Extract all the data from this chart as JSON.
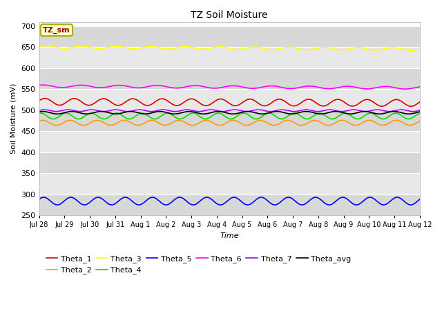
{
  "title": "TZ Soil Moisture",
  "xlabel": "Time",
  "ylabel": "Soil Moisture (mV)",
  "ylim": [
    250,
    710
  ],
  "yticks": [
    250,
    300,
    350,
    400,
    450,
    500,
    550,
    600,
    650,
    700
  ],
  "bg_color": "#e0e0e0",
  "label_box_text": "TZ_sm",
  "label_box_facecolor": "#ffffcc",
  "label_box_edgecolor": "#aaaa00",
  "label_box_textcolor": "#990000",
  "series_order": [
    "Theta_1",
    "Theta_2",
    "Theta_3",
    "Theta_4",
    "Theta_5",
    "Theta_6",
    "Theta_7",
    "Theta_avg"
  ],
  "series": {
    "Theta_1": {
      "color": "#dd0000",
      "base": 520,
      "amp": 8,
      "freq": 13
    },
    "Theta_2": {
      "color": "#ff9900",
      "base": 470,
      "amp": 6,
      "freq": 14
    },
    "Theta_3": {
      "color": "#ffff00",
      "base": 650,
      "amp": 3,
      "freq": 11
    },
    "Theta_4": {
      "color": "#00dd00",
      "base": 486,
      "amp": 7,
      "freq": 15
    },
    "Theta_5": {
      "color": "#0000ff",
      "base": 284,
      "amp": 9,
      "freq": 14
    },
    "Theta_6": {
      "color": "#ff00ff",
      "base": 557,
      "amp": 3,
      "freq": 10
    },
    "Theta_7": {
      "color": "#aa00ff",
      "base": 499,
      "amp": 2,
      "freq": 16
    },
    "Theta_avg": {
      "color": "#000000",
      "base": 494,
      "amp": 3,
      "freq": 13
    }
  },
  "legend_order": [
    "Theta_1",
    "Theta_2",
    "Theta_3",
    "Theta_4",
    "Theta_5",
    "Theta_6",
    "Theta_7",
    "Theta_avg"
  ],
  "figsize": [
    6.4,
    4.8
  ],
  "dpi": 100
}
